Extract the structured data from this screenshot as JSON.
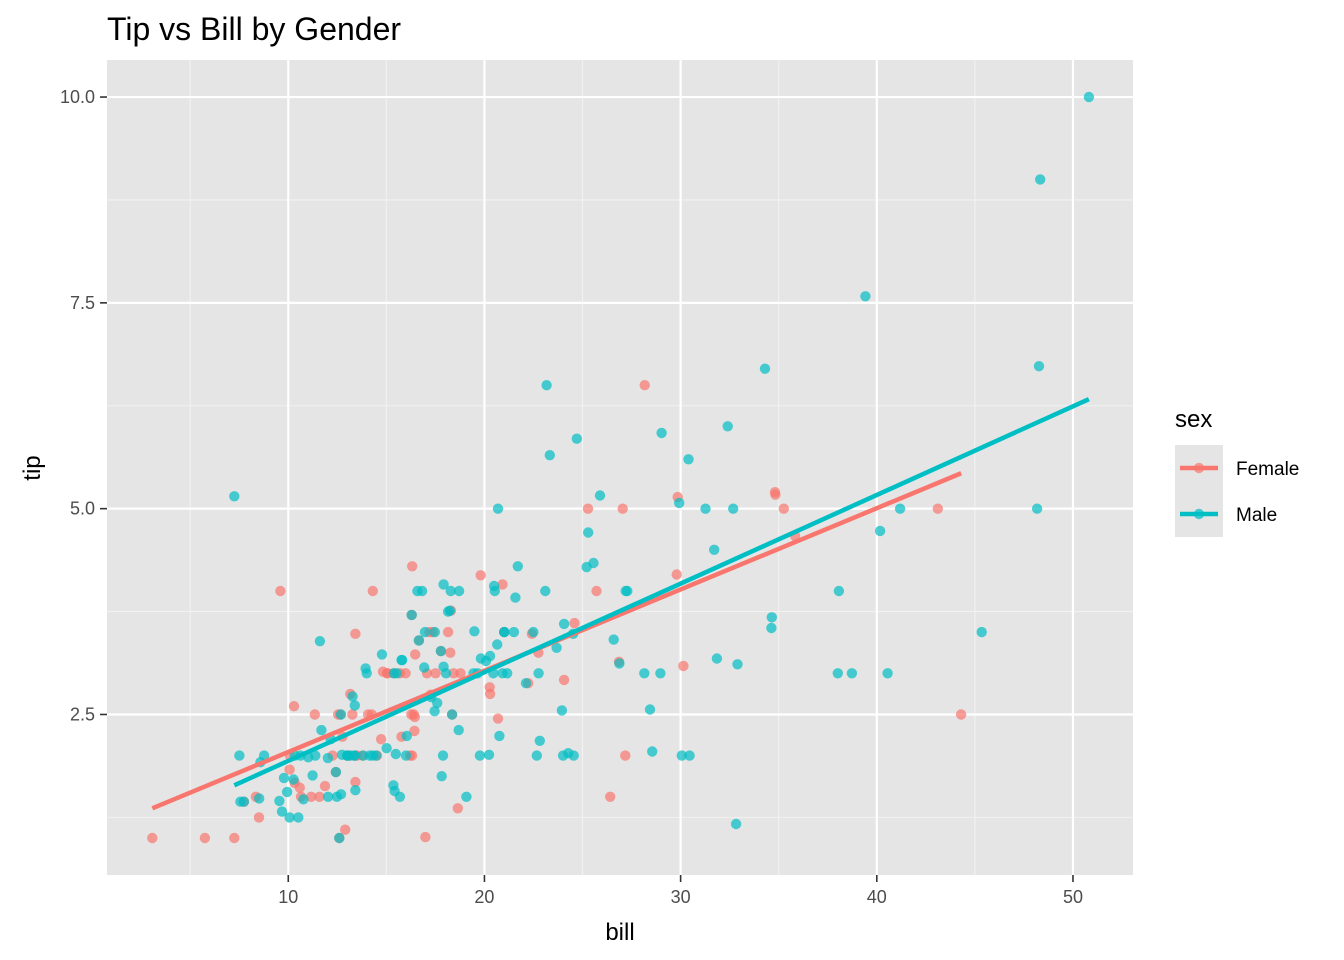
{
  "chart_data": {
    "type": "scatter",
    "title": "Tip vs Bill by Gender",
    "xlabel": "bill",
    "ylabel": "tip",
    "xlim": [
      0.76,
      53.06
    ],
    "ylim": [
      0.55,
      10.45
    ],
    "xticks": [
      10,
      20,
      30,
      40,
      50
    ],
    "yticks": [
      2.5,
      5.0,
      7.5,
      10.0
    ],
    "xtick_labels": [
      "10",
      "20",
      "30",
      "40",
      "50"
    ],
    "ytick_labels": [
      "2.5",
      "5.0",
      "7.5",
      "10.0"
    ],
    "x_minor_gridlines": [
      5,
      15,
      25,
      35,
      45
    ],
    "y_minor_gridlines": [
      1.25,
      3.75,
      6.25,
      8.75
    ],
    "grid": true,
    "background": "#e5e5e5",
    "legend": {
      "title": "sex",
      "position": "right",
      "entries": [
        "Female",
        "Male"
      ]
    },
    "series": [
      {
        "name": "Female",
        "color": "#f8766d",
        "fit": {
          "x": [
            3.07,
            44.3
          ],
          "y": [
            1.36,
            5.43
          ]
        },
        "points": [
          [
            3.07,
            1.0
          ],
          [
            5.75,
            1.0
          ],
          [
            7.25,
            1.0
          ],
          [
            7.74,
            1.44
          ],
          [
            8.35,
            1.5
          ],
          [
            8.51,
            1.25
          ],
          [
            9.6,
            4.0
          ],
          [
            10.07,
            1.83
          ],
          [
            10.29,
            2.6
          ],
          [
            10.33,
            1.67
          ],
          [
            10.59,
            1.61
          ],
          [
            10.65,
            1.5
          ],
          [
            11.17,
            1.5
          ],
          [
            11.35,
            2.5
          ],
          [
            11.59,
            1.5
          ],
          [
            11.87,
            1.63
          ],
          [
            12.43,
            1.8
          ],
          [
            12.54,
            2.5
          ],
          [
            12.66,
            2.5
          ],
          [
            12.76,
            2.23
          ],
          [
            12.9,
            1.1
          ],
          [
            13.0,
            2.0
          ],
          [
            13.13,
            2.0
          ],
          [
            13.16,
            2.75
          ],
          [
            13.27,
            2.5
          ],
          [
            13.42,
            3.48
          ],
          [
            13.42,
            1.68
          ],
          [
            13.43,
            2.0
          ],
          [
            13.81,
            2.0
          ],
          [
            14.26,
            2.5
          ],
          [
            14.31,
            4.0
          ],
          [
            14.52,
            2.0
          ],
          [
            14.73,
            2.2
          ],
          [
            14.83,
            3.02
          ],
          [
            15.04,
            3.0
          ],
          [
            15.06,
            3.0
          ],
          [
            15.38,
            3.0
          ],
          [
            15.77,
            2.23
          ],
          [
            15.98,
            3.0
          ],
          [
            16.21,
            2.0
          ],
          [
            16.27,
            2.5
          ],
          [
            16.29,
            3.71
          ],
          [
            16.31,
            2.0
          ],
          [
            16.4,
            2.5
          ],
          [
            16.43,
            2.3
          ],
          [
            16.45,
            2.47
          ],
          [
            16.47,
            3.23
          ],
          [
            16.99,
            1.01
          ],
          [
            17.07,
            3.0
          ],
          [
            17.19,
            3.5
          ],
          [
            17.51,
            3.0
          ],
          [
            17.78,
            3.27
          ],
          [
            18.15,
            3.5
          ],
          [
            18.26,
            3.25
          ],
          [
            18.29,
            3.76
          ],
          [
            18.43,
            3.0
          ],
          [
            18.64,
            1.36
          ],
          [
            18.78,
            3.0
          ],
          [
            19.81,
            4.19
          ],
          [
            20.27,
            2.83
          ],
          [
            20.29,
            2.75
          ],
          [
            20.69,
            2.45
          ],
          [
            20.92,
            4.08
          ],
          [
            22.42,
            3.48
          ],
          [
            22.75,
            3.25
          ],
          [
            24.59,
            3.61
          ],
          [
            25.28,
            5.0
          ],
          [
            26.41,
            1.5
          ],
          [
            26.86,
            3.14
          ],
          [
            27.05,
            5.0
          ],
          [
            28.17,
            6.5
          ],
          [
            29.85,
            5.14
          ],
          [
            30.14,
            3.09
          ],
          [
            35.83,
            4.67
          ],
          [
            43.11,
            5.0
          ],
          [
            44.3,
            2.5
          ],
          [
            18.35,
            2.5
          ],
          [
            24.06,
            2.92
          ],
          [
            15.69,
            3.0
          ],
          [
            16.66,
            3.4
          ],
          [
            17.26,
            2.74
          ],
          [
            25.71,
            4.0
          ],
          [
            22.23,
            2.88
          ],
          [
            14.07,
            2.5
          ],
          [
            34.83,
            5.17
          ],
          [
            29.8,
            4.2
          ],
          [
            12.6,
            1.0
          ],
          [
            27.18,
            2.0
          ],
          [
            34.81,
            5.2
          ],
          [
            21.0,
            3.5
          ],
          [
            16.32,
            4.3
          ],
          [
            12.26,
            2.0
          ],
          [
            10.09,
            2.0
          ],
          [
            17.36,
            3.5
          ],
          [
            35.26,
            5.0
          ],
          [
            13.51,
            2.0
          ]
        ]
      },
      {
        "name": "Male",
        "color": "#00bfc4",
        "fit": {
          "x": [
            7.25,
            50.81
          ],
          "y": [
            1.64,
            6.33
          ]
        },
        "points": [
          [
            7.25,
            5.15
          ],
          [
            7.51,
            2.0
          ],
          [
            7.56,
            1.44
          ],
          [
            7.74,
            1.44
          ],
          [
            8.52,
            1.48
          ],
          [
            8.58,
            1.92
          ],
          [
            8.77,
            2.0
          ],
          [
            9.55,
            1.45
          ],
          [
            9.68,
            1.32
          ],
          [
            9.78,
            1.73
          ],
          [
            9.94,
            1.56
          ],
          [
            10.07,
            1.25
          ],
          [
            10.27,
            1.71
          ],
          [
            10.34,
            2.0
          ],
          [
            10.51,
            1.25
          ],
          [
            10.63,
            2.0
          ],
          [
            10.77,
            1.47
          ],
          [
            11.02,
            1.98
          ],
          [
            11.24,
            1.76
          ],
          [
            11.38,
            2.0
          ],
          [
            11.61,
            3.39
          ],
          [
            11.69,
            2.31
          ],
          [
            12.02,
            1.97
          ],
          [
            12.03,
            1.5
          ],
          [
            12.16,
            2.2
          ],
          [
            12.48,
            1.5
          ],
          [
            12.6,
            1.0
          ],
          [
            12.69,
            2.5
          ],
          [
            12.74,
            2.01
          ],
          [
            13.0,
            2.0
          ],
          [
            13.03,
            2.0
          ],
          [
            13.28,
            2.72
          ],
          [
            13.37,
            2.0
          ],
          [
            13.39,
            2.61
          ],
          [
            13.42,
            1.58
          ],
          [
            13.81,
            2.0
          ],
          [
            13.94,
            3.06
          ],
          [
            14.0,
            3.0
          ],
          [
            14.15,
            2.0
          ],
          [
            14.48,
            2.0
          ],
          [
            14.78,
            3.23
          ],
          [
            15.01,
            2.09
          ],
          [
            15.36,
            1.64
          ],
          [
            15.42,
            1.57
          ],
          [
            15.48,
            2.02
          ],
          [
            15.53,
            3.0
          ],
          [
            15.69,
            1.5
          ],
          [
            15.77,
            3.16
          ],
          [
            15.81,
            3.16
          ],
          [
            16.0,
            2.0
          ],
          [
            16.04,
            2.24
          ],
          [
            16.29,
            3.71
          ],
          [
            16.58,
            4.0
          ],
          [
            16.66,
            3.4
          ],
          [
            16.82,
            4.0
          ],
          [
            17.29,
            2.71
          ],
          [
            17.46,
            2.54
          ],
          [
            17.59,
            2.64
          ],
          [
            17.78,
            3.27
          ],
          [
            17.82,
            1.75
          ],
          [
            17.89,
            2.0
          ],
          [
            17.92,
            4.08
          ],
          [
            18.24,
            3.76
          ],
          [
            18.28,
            4.0
          ],
          [
            18.35,
            2.5
          ],
          [
            18.69,
            2.31
          ],
          [
            18.71,
            4.0
          ],
          [
            19.08,
            1.5
          ],
          [
            19.49,
            3.51
          ],
          [
            19.77,
            2.0
          ],
          [
            19.82,
            3.18
          ],
          [
            20.08,
            3.15
          ],
          [
            20.23,
            2.01
          ],
          [
            20.29,
            3.21
          ],
          [
            20.45,
            3.0
          ],
          [
            20.49,
            4.06
          ],
          [
            20.53,
            4.0
          ],
          [
            20.65,
            3.35
          ],
          [
            20.69,
            5.0
          ],
          [
            20.76,
            2.24
          ],
          [
            21.01,
            3.5
          ],
          [
            21.16,
            3.0
          ],
          [
            21.58,
            3.92
          ],
          [
            21.7,
            4.3
          ],
          [
            22.12,
            2.88
          ],
          [
            22.49,
            3.5
          ],
          [
            22.67,
            2.0
          ],
          [
            22.76,
            3.0
          ],
          [
            22.82,
            2.18
          ],
          [
            23.1,
            4.0
          ],
          [
            23.17,
            6.5
          ],
          [
            23.33,
            5.65
          ],
          [
            23.68,
            3.31
          ],
          [
            24.01,
            2.0
          ],
          [
            24.27,
            2.03
          ],
          [
            24.52,
            3.48
          ],
          [
            24.55,
            2.0
          ],
          [
            24.71,
            5.85
          ],
          [
            25.21,
            4.29
          ],
          [
            25.29,
            4.71
          ],
          [
            25.56,
            4.34
          ],
          [
            25.89,
            5.16
          ],
          [
            26.59,
            3.41
          ],
          [
            26.88,
            3.12
          ],
          [
            27.2,
            4.0
          ],
          [
            27.28,
            4.0
          ],
          [
            28.15,
            3.0
          ],
          [
            28.44,
            2.56
          ],
          [
            28.55,
            2.05
          ],
          [
            28.97,
            3.0
          ],
          [
            29.03,
            5.92
          ],
          [
            29.93,
            5.07
          ],
          [
            30.06,
            2.0
          ],
          [
            30.4,
            5.6
          ],
          [
            30.46,
            2.0
          ],
          [
            31.27,
            5.0
          ],
          [
            31.71,
            4.5
          ],
          [
            31.85,
            3.18
          ],
          [
            32.4,
            6.0
          ],
          [
            32.68,
            5.0
          ],
          [
            32.83,
            1.17
          ],
          [
            32.9,
            3.11
          ],
          [
            34.3,
            6.7
          ],
          [
            34.63,
            3.55
          ],
          [
            34.65,
            3.68
          ],
          [
            38.01,
            3.0
          ],
          [
            38.07,
            4.0
          ],
          [
            38.73,
            3.0
          ],
          [
            39.42,
            7.58
          ],
          [
            40.17,
            4.73
          ],
          [
            40.55,
            3.0
          ],
          [
            41.19,
            5.0
          ],
          [
            45.35,
            3.5
          ],
          [
            48.17,
            5.0
          ],
          [
            48.27,
            6.73
          ],
          [
            48.33,
            9.0
          ],
          [
            50.81,
            10.0
          ],
          [
            24.06,
            3.6
          ],
          [
            23.95,
            2.55
          ],
          [
            18.04,
            3.0
          ],
          [
            19.44,
            3.0
          ],
          [
            17.47,
            3.5
          ],
          [
            12.43,
            1.8
          ],
          [
            21.5,
            3.5
          ],
          [
            18.15,
            3.75
          ],
          [
            16.93,
            3.07
          ],
          [
            14.31,
            2.0
          ],
          [
            16.97,
            3.5
          ],
          [
            20.92,
            3.0
          ],
          [
            13.13,
            2.0
          ],
          [
            15.38,
            3.0
          ],
          [
            17.92,
            3.08
          ],
          [
            21.01,
            3.5
          ],
          [
            19.65,
            3.0
          ],
          [
            12.69,
            1.53
          ],
          [
            13.37,
            2.0
          ]
        ]
      }
    ]
  }
}
